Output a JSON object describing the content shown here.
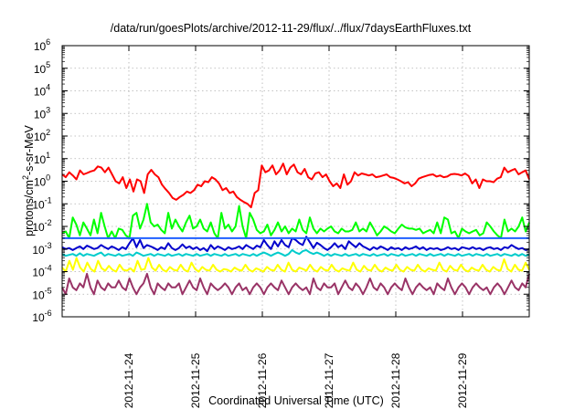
{
  "chart_data": {
    "type": "line",
    "title": "/data/run/goesPlots/archive/2012-11-29/flux/../flux/7daysEarthFluxes.txt",
    "xlabel": "Coordinated Universal Time (UTC)",
    "ylabel": {
      "base": "protons/cm",
      "sup": "2",
      "rest": "-s-sr-MeV"
    },
    "y_scale": "log",
    "ylim_exponents": [
      -6,
      6
    ],
    "y_tick_labels": [
      {
        "base": "10",
        "exp": "-6"
      },
      {
        "base": "10",
        "exp": "-5"
      },
      {
        "base": "10",
        "exp": "-4"
      },
      {
        "base": "10",
        "exp": "-3"
      },
      {
        "base": "10",
        "exp": "-2"
      },
      {
        "base": "10",
        "exp": "-1"
      },
      {
        "base": "10",
        "exp": "0"
      },
      {
        "base": "10",
        "exp": "1"
      },
      {
        "base": "10",
        "exp": "2"
      },
      {
        "base": "10",
        "exp": "3"
      },
      {
        "base": "10",
        "exp": "4"
      },
      {
        "base": "10",
        "exp": "5"
      },
      {
        "base": "10",
        "exp": "6"
      }
    ],
    "x_range_days": [
      0,
      7
    ],
    "x_ticks": [
      {
        "label": "2012-11-24",
        "day": 1
      },
      {
        "label": "2012-11-25",
        "day": 2
      },
      {
        "label": "2012-11-26",
        "day": 3
      },
      {
        "label": "2012-11-27",
        "day": 4
      },
      {
        "label": "2012-11-28",
        "day": 5
      },
      {
        "label": "2012-11-29",
        "day": 6
      }
    ],
    "grid": true,
    "series": [
      {
        "color": "#ff0000",
        "values": [
          2,
          1.5,
          2.5,
          1.8,
          1.2,
          3,
          2,
          2.3,
          2.7,
          3,
          4.5,
          4,
          2.5,
          4,
          2,
          1,
          0.8,
          1.5,
          0.5,
          1.2,
          0.35,
          1.2,
          1,
          0.3,
          2,
          3.2,
          2,
          1.5,
          0.7,
          0.45,
          0.3,
          0.18,
          0.15,
          0.2,
          0.25,
          0.35,
          0.3,
          0.4,
          0.7,
          0.6,
          1,
          0.9,
          1.5,
          1.2,
          0.8,
          0.4,
          0.5,
          0.3,
          0.35,
          0.2,
          0.15,
          0.12,
          0.1,
          0.07,
          0.3,
          0.4,
          5,
          2.5,
          3,
          5,
          2,
          3,
          6,
          2,
          4,
          5.5,
          2.5,
          2,
          3.5,
          1.5,
          1.2,
          2.2,
          2.5,
          1.5,
          2,
          1,
          0.6,
          0.8,
          0.5,
          2,
          0.7,
          1,
          2.5,
          1.8,
          2.2,
          2,
          1.8,
          2,
          1.5,
          1.6,
          1.8,
          2,
          1.5,
          1.4,
          1.2,
          1,
          0.8,
          0.9,
          0.6,
          0.8,
          1.3,
          1.5,
          1.7,
          1.9,
          2,
          1.6,
          1.8,
          1.5,
          1.6,
          2,
          2.1,
          2,
          1.8,
          2.2,
          1.7,
          0.8,
          1.2,
          0.5,
          1.2,
          1,
          1,
          0.9,
          1.3,
          1.5,
          4,
          2.5,
          3,
          3.5,
          2,
          2.5,
          3,
          1.2
        ]
      },
      {
        "color": "#00ff00",
        "values": [
          0.005,
          0.006,
          0.003,
          0.025,
          0.012,
          0.004,
          0.015,
          0.008,
          0.004,
          0.02,
          0.005,
          0.04,
          0.01,
          0.003,
          0.006,
          0.003,
          0.008,
          0.007,
          0.004,
          0.003,
          0.03,
          0.04,
          0.008,
          0.02,
          0.1,
          0.015,
          0.01,
          0.012,
          0.007,
          0.005,
          0.04,
          0.008,
          0.02,
          0.01,
          0.006,
          0.015,
          0.03,
          0.008,
          0.01,
          0.02,
          0.008,
          0.006,
          0.015,
          0.005,
          0.003,
          0.04,
          0.008,
          0.012,
          0.006,
          0.01,
          0.08,
          0.01,
          0.003,
          0.04,
          0.02,
          0.007,
          0.005,
          0.006,
          0.012,
          0.004,
          0.007,
          0.015,
          0.006,
          0.01,
          0.005,
          0.008,
          0.006,
          0.02,
          0.007,
          0.005,
          0.025,
          0.008,
          0.005,
          0.008,
          0.006,
          0.008,
          0.01,
          0.006,
          0.005,
          0.008,
          0.006,
          0.006,
          0.007,
          0.015,
          0.006,
          0.008,
          0.006,
          0.015,
          0.008,
          0.004,
          0.006,
          0.01,
          0.008,
          0.006,
          0.005,
          0.008,
          0.012,
          0.009,
          0.008,
          0.008,
          0.007,
          0.008,
          0.005,
          0.006,
          0.007,
          0.005,
          0.015,
          0.005,
          0.025,
          0.02,
          0.005,
          0.006,
          0.003,
          0.008,
          0.006,
          0.005,
          0.006,
          0.007,
          0.004,
          0.005,
          0.015,
          0.01,
          0.006,
          0.004,
          0.003,
          0.02,
          0.006,
          0.008,
          0.006,
          0.01,
          0.025,
          0.006,
          0.015
        ]
      },
      {
        "color": "#0000cc",
        "values": [
          0.0012,
          0.001,
          0.0011,
          0.0009,
          0.0011,
          0.0013,
          0.001,
          0.0014,
          0.0012,
          0.001,
          0.0011,
          0.0015,
          0.0012,
          0.001,
          0.0013,
          0.0011,
          0.0009,
          0.0012,
          0.001,
          0.0018,
          0.003,
          0.0012,
          0.0025,
          0.0011,
          0.0015,
          0.0013,
          0.0011,
          0.0009,
          0.0012,
          0.001,
          0.0018,
          0.0011,
          0.0009,
          0.0011,
          0.0016,
          0.0011,
          0.0013,
          0.001,
          0.0012,
          0.0009,
          0.0011,
          0.0008,
          0.0015,
          0.001,
          0.0013,
          0.0011,
          0.0009,
          0.0012,
          0.001,
          0.0011,
          0.0013,
          0.001,
          0.0015,
          0.0012,
          0.001,
          0.0014,
          0.0012,
          0.0025,
          0.0015,
          0.001,
          0.0022,
          0.0013,
          0.0025,
          0.0015,
          0.0012,
          0.003,
          0.0025,
          0.0018,
          0.0015,
          0.0035,
          0.002,
          0.0011,
          0.0019,
          0.0015,
          0.0011,
          0.0009,
          0.0012,
          0.0018,
          0.0012,
          0.0015,
          0.001,
          0.0022,
          0.0016,
          0.0012,
          0.0018,
          0.0013,
          0.0011,
          0.0009,
          0.0012,
          0.001,
          0.0013,
          0.0011,
          0.0009,
          0.0012,
          0.001,
          0.0011,
          0.0009,
          0.0012,
          0.001,
          0.0011,
          0.0013,
          0.001,
          0.0012,
          0.0009,
          0.0011,
          0.001,
          0.0011,
          0.0009,
          0.001,
          0.0012,
          0.001,
          0.0011,
          0.0009,
          0.0012,
          0.0011,
          0.001,
          0.0012,
          0.001,
          0.0011,
          0.0009,
          0.0011,
          0.0012,
          0.001,
          0.0011,
          0.0009,
          0.0012,
          0.0011,
          0.0015,
          0.0012,
          0.001,
          0.0011,
          0.0009,
          0.001
        ]
      },
      {
        "color": "#1f5fff",
        "values": [
          0.003,
          0.003,
          0.003,
          0.003,
          0.003,
          0.003,
          0.003,
          0.003,
          0.003,
          0.003,
          0.003,
          0.003,
          0.003,
          0.003,
          0.003,
          0.003,
          0.003,
          0.003,
          0.003,
          0.003,
          0.003,
          0.003,
          0.003,
          0.003,
          0.003,
          0.003,
          0.003,
          0.003,
          0.003,
          0.003,
          0.003,
          0.003,
          0.003,
          0.003,
          0.003,
          0.003,
          0.003,
          0.003,
          0.003,
          0.003,
          0.003,
          0.003,
          0.003,
          0.003,
          0.003,
          0.003,
          0.003,
          0.003,
          0.003,
          0.003,
          0.003,
          0.003,
          0.003,
          0.003,
          0.003,
          0.003,
          0.003,
          0.003,
          0.003,
          0.003,
          0.003,
          0.003,
          0.003,
          0.003,
          0.003,
          0.003,
          0.003,
          0.003,
          0.003,
          0.003,
          0.003,
          0.003,
          0.003,
          0.003,
          0.003,
          0.003,
          0.003,
          0.003,
          0.003,
          0.003,
          0.003,
          0.003,
          0.003,
          0.003,
          0.003,
          0.003,
          0.003,
          0.003,
          0.003,
          0.003,
          0.003,
          0.003,
          0.003,
          0.003,
          0.003,
          0.003,
          0.003,
          0.003,
          0.003,
          0.003,
          0.003,
          0.003,
          0.003,
          0.003,
          0.003,
          0.003,
          0.003,
          0.003,
          0.003,
          0.003,
          0.003,
          0.003,
          0.003,
          0.003,
          0.003,
          0.003,
          0.003,
          0.003,
          0.003,
          0.003,
          0.003,
          0.003,
          0.003,
          0.003,
          0.003,
          0.003,
          0.003,
          0.003,
          0.003,
          0.003,
          0.003,
          0.003,
          0.003
        ]
      },
      {
        "color": "#00cccc",
        "values": [
          0.0006,
          0.0005,
          0.00055,
          0.0006,
          0.0005,
          0.00065,
          0.0005,
          0.0006,
          0.00055,
          0.0005,
          0.0006,
          0.0007,
          0.0005,
          0.0006,
          0.00055,
          0.0005,
          0.0006,
          0.0005,
          0.00055,
          0.0006,
          0.0005,
          0.0007,
          0.0006,
          0.0005,
          0.00055,
          0.0006,
          0.0005,
          0.0006,
          0.00055,
          0.0005,
          0.0006,
          0.0005,
          0.00055,
          0.0006,
          0.0005,
          0.0006,
          0.00055,
          0.0005,
          0.0006,
          0.0005,
          0.00055,
          0.0006,
          0.0005,
          0.0006,
          0.00055,
          0.0005,
          0.0006,
          0.0005,
          0.00055,
          0.0006,
          0.0005,
          0.0006,
          0.00055,
          0.0005,
          0.0006,
          0.0005,
          0.0006,
          0.0007,
          0.0006,
          0.0005,
          0.0006,
          0.0007,
          0.0006,
          0.0005,
          0.0006,
          0.0009,
          0.0007,
          0.0006,
          0.0008,
          0.0009,
          0.0007,
          0.0006,
          0.0007,
          0.0006,
          0.0005,
          0.0006,
          0.0005,
          0.0006,
          0.00055,
          0.0005,
          0.0006,
          0.0005,
          0.00055,
          0.0006,
          0.0005,
          0.0006,
          0.00055,
          0.0005,
          0.0006,
          0.0005,
          0.00055,
          0.0006,
          0.0005,
          0.0006,
          0.00055,
          0.0005,
          0.0006,
          0.0005,
          0.00055,
          0.0006,
          0.0005,
          0.0006,
          0.00055,
          0.0005,
          0.0006,
          0.0005,
          0.00055,
          0.0006,
          0.0005,
          0.0006,
          0.00055,
          0.0005,
          0.0006,
          0.0005,
          0.00055,
          0.0006,
          0.0005,
          0.0006,
          0.00055,
          0.0005,
          0.0006,
          0.0005,
          0.00055,
          0.0006,
          0.0005,
          0.0006,
          0.00055,
          0.0005,
          0.0006,
          0.0005,
          0.0006,
          0.0005,
          0.00055
        ]
      },
      {
        "color": "#ffff00",
        "values": [
          0.00015,
          0.0001,
          0.0003,
          0.00012,
          0.0004,
          0.00015,
          0.0001,
          0.00025,
          0.00013,
          0.0001,
          0.0003,
          0.00014,
          0.00011,
          0.00018,
          0.00012,
          0.0001,
          0.0002,
          0.00012,
          0.00011,
          0.00014,
          0.0001,
          0.0003,
          0.00012,
          0.00013,
          0.0004,
          0.00015,
          0.00011,
          0.0002,
          0.00012,
          0.0001,
          0.00016,
          0.00012,
          0.00011,
          0.0002,
          0.00012,
          0.0001,
          0.00025,
          0.00013,
          0.0001,
          0.00016,
          0.00012,
          0.00011,
          0.0002,
          0.00012,
          0.0001,
          0.00013,
          0.00012,
          0.0001,
          0.00015,
          0.00012,
          0.00011,
          0.0002,
          0.00012,
          0.0001,
          0.00014,
          0.00012,
          0.0001,
          0.00016,
          0.00012,
          0.00011,
          0.0002,
          0.00012,
          0.0001,
          0.00025,
          0.00012,
          0.0001,
          0.00015,
          0.00013,
          0.00011,
          0.0002,
          0.00012,
          0.0001,
          0.00016,
          0.00012,
          0.00011,
          0.0002,
          0.00012,
          0.0001,
          0.00014,
          0.00012,
          0.00011,
          0.00025,
          0.00012,
          0.0001,
          0.00018,
          0.00012,
          0.00011,
          0.0002,
          0.00012,
          0.0001,
          0.00015,
          0.00012,
          0.00011,
          0.0002,
          0.00012,
          0.0001,
          0.00016,
          0.00012,
          0.00011,
          0.0002,
          0.00012,
          0.0001,
          0.00014,
          0.00012,
          0.00011,
          0.00025,
          0.00012,
          0.0001,
          0.00018,
          0.00012,
          0.00011,
          0.0002,
          0.00012,
          0.0001,
          0.00015,
          0.00012,
          0.00011,
          0.0002,
          0.00012,
          0.0001,
          0.00016,
          0.00012,
          0.00011,
          0.00035,
          0.00013,
          0.0001,
          0.0002,
          0.00012,
          0.00011,
          0.00025,
          0.00012
        ]
      },
      {
        "color": "#993366",
        "values": [
          2e-05,
          1e-05,
          5e-05,
          2e-05,
          1.5e-05,
          3e-05,
          2e-05,
          8e-05,
          2e-05,
          1e-05,
          4e-05,
          2e-05,
          1.5e-05,
          3e-05,
          2e-05,
          2e-05,
          4e-05,
          2e-05,
          1.5e-05,
          5e-05,
          2e-05,
          1e-05,
          2e-05,
          3e-05,
          8e-05,
          2e-05,
          1e-05,
          3e-05,
          2e-05,
          1.5e-05,
          3e-05,
          2e-05,
          2e-05,
          3e-05,
          1e-05,
          2e-05,
          4e-05,
          2e-05,
          1.5e-05,
          5e-05,
          2e-05,
          1e-05,
          3e-05,
          2e-05,
          1.5e-05,
          2e-05,
          3e-05,
          2e-05,
          1e-05,
          2e-05,
          3e-05,
          1.5e-05,
          2e-05,
          1e-05,
          2e-05,
          3e-05,
          2e-05,
          1e-05,
          2e-05,
          3e-05,
          2e-05,
          1.5e-05,
          4e-05,
          2e-05,
          1e-05,
          2e-05,
          3e-05,
          2e-05,
          1.5e-05,
          2e-05,
          1e-05,
          5e-05,
          2e-05,
          1.5e-05,
          3e-05,
          2e-05,
          2e-05,
          3e-05,
          1e-05,
          2e-05,
          4e-05,
          2e-05,
          1.5e-05,
          3e-05,
          2e-05,
          1e-05,
          2e-05,
          5e-05,
          2e-05,
          1.5e-05,
          3e-05,
          2e-05,
          1e-05,
          2e-05,
          3e-05,
          2e-05,
          1.5e-05,
          5e-05,
          2e-05,
          1e-05,
          2e-05,
          3e-05,
          2e-05,
          1.5e-05,
          2e-05,
          1e-05,
          3e-05,
          2e-05,
          1.5e-05,
          5e-05,
          2e-05,
          1e-05,
          2e-05,
          3e-05,
          2e-05,
          1e-05,
          2e-05,
          3e-05,
          2e-05,
          1.5e-05,
          2e-05,
          1e-05,
          2e-05,
          3e-05,
          2e-05,
          1e-05,
          2e-05,
          4e-05,
          2e-05,
          1.5e-05,
          3e-05,
          2e-05,
          8e-05
        ]
      }
    ]
  }
}
